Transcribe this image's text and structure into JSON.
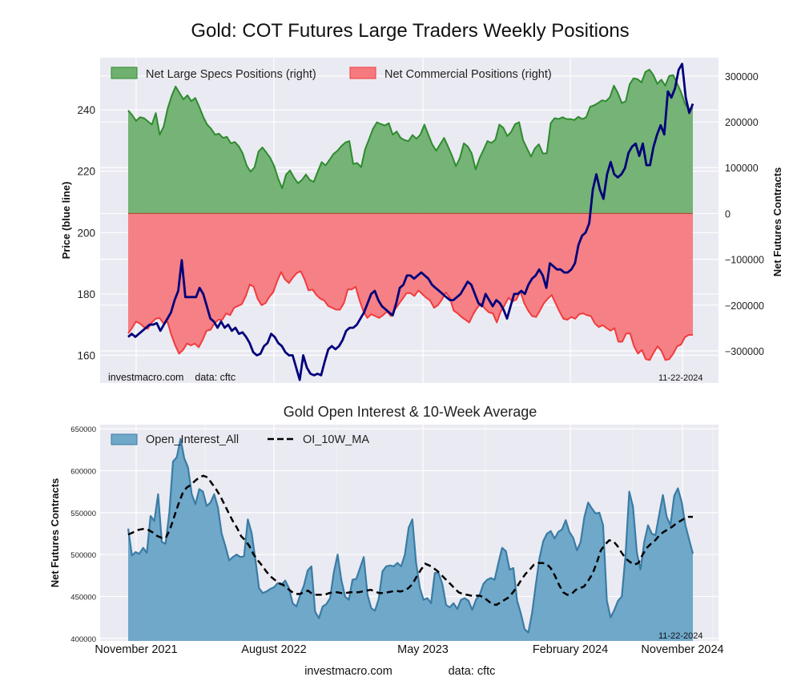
{
  "chart_data": [
    {
      "type": "area",
      "title": "Gold: COT Futures Large Traders Weekly Positions",
      "ylabel_left": "Price (blue line)",
      "ylabel_right": "Net Futures Contracts",
      "left_ylim": [
        151,
        257
      ],
      "left_ticks": [
        160,
        180,
        200,
        220,
        240
      ],
      "right_ylim": [
        -370000,
        340000
      ],
      "right_ticks": [
        -300000,
        -200000,
        -100000,
        0,
        100000,
        200000,
        300000
      ],
      "right_tick_labels": [
        "−300000",
        "−200000",
        "−100000",
        "0",
        "100000",
        "200000",
        "300000"
      ],
      "grid": true,
      "legend": "top-left",
      "legend_entries": [
        "Net Large Specs Positions (right)",
        "Net Commercial Positions (right)"
      ],
      "watermark": "investmacro.com    data: cftc",
      "date_label": "11-22-2024",
      "x_start": "2021-10-26",
      "x_end": "2024-11-19",
      "series": [
        {
          "name": "Net Large Specs Positions (right)",
          "axis": "right",
          "color": "#2e8b2e",
          "fill": "#6fb06f",
          "values": [
            225,
            215,
            202,
            210,
            208,
            201,
            194,
            219,
            172,
            190,
            229,
            256,
            277,
            263,
            249,
            258,
            245,
            252,
            233,
            211,
            194,
            185,
            172,
            174,
            165,
            167,
            153,
            156,
            147,
            131,
            105,
            91,
            101,
            135,
            144,
            133,
            121,
            103,
            76,
            55,
            85,
            94,
            78,
            66,
            73,
            85,
            73,
            69,
            91,
            112,
            105,
            117,
            130,
            137,
            147,
            155,
            158,
            108,
            110,
            101,
            140,
            162,
            185,
            199,
            195,
            192,
            197,
            172,
            179,
            165,
            160,
            158,
            171,
            163,
            172,
            194,
            172,
            151,
            137,
            151,
            165,
            146,
            126,
            103,
            121,
            153,
            146,
            131,
            96,
            121,
            139,
            158,
            154,
            161,
            194,
            187,
            169,
            178,
            195,
            199,
            160,
            142,
            124,
            142,
            151,
            131,
            131,
            197,
            208,
            206,
            210,
            206,
            206,
            204,
            211,
            206,
            210,
            233,
            236,
            241,
            247,
            245,
            254,
            279,
            263,
            241,
            245,
            282,
            295,
            293,
            286,
            309,
            314,
            302,
            283,
            292,
            279,
            300,
            302,
            284,
            265,
            240,
            226,
            231
          ]
        },
        {
          "name": "Net Commercial Positions (right)",
          "axis": "right",
          "color": "#f03c3c",
          "fill": "#f57a7f",
          "values": [
            -262,
            -250,
            -236,
            -240,
            -248,
            -252,
            -238,
            -230,
            -228,
            -240,
            -236,
            -265,
            -288,
            -306,
            -298,
            -284,
            -288,
            -284,
            -292,
            -276,
            -256,
            -254,
            -240,
            -232,
            -232,
            -218,
            -222,
            -206,
            -202,
            -198,
            -180,
            -155,
            -160,
            -186,
            -200,
            -196,
            -182,
            -172,
            -148,
            -128,
            -144,
            -152,
            -140,
            -130,
            -126,
            -144,
            -168,
            -166,
            -178,
            -186,
            -190,
            -202,
            -206,
            -210,
            -210,
            -196,
            -166,
            -166,
            -160,
            -190,
            -214,
            -228,
            -220,
            -224,
            -228,
            -222,
            -214,
            -224,
            -210,
            -198,
            -186,
            -174,
            -174,
            -180,
            -168,
            -176,
            -184,
            -190,
            -206,
            -200,
            -188,
            -172,
            -184,
            -212,
            -218,
            -226,
            -232,
            -238,
            -220,
            -206,
            -196,
            -208,
            -216,
            -218,
            -238,
            -214,
            -200,
            -184,
            -192,
            -188,
            -170,
            -196,
            -212,
            -224,
            -226,
            -212,
            -196,
            -186,
            -178,
            -196,
            -214,
            -230,
            -232,
            -226,
            -230,
            -220,
            -218,
            -222,
            -224,
            -240,
            -248,
            -244,
            -250,
            -256,
            -250,
            -280,
            -280,
            -262,
            -262,
            -290,
            -306,
            -298,
            -318,
            -320,
            -304,
            -290,
            -300,
            -320,
            -318,
            -306,
            -290,
            -286,
            -270,
            -265,
            -265
          ]
        },
        {
          "name": "Price (blue line)",
          "axis": "left",
          "color": "#00007a",
          "values": [
            166,
            167,
            166,
            167,
            168,
            169,
            170,
            170,
            170.5,
            168,
            170,
            172,
            174,
            178,
            181,
            191,
            179,
            179,
            179,
            179,
            182,
            180,
            176,
            172,
            171,
            169,
            171,
            169,
            170,
            168,
            169,
            167,
            167.5,
            166,
            164,
            161,
            160,
            160.5,
            163,
            164,
            167,
            166,
            164,
            163,
            161,
            160,
            160,
            156,
            152,
            160,
            156,
            154,
            153.5,
            154,
            153.5,
            158,
            162,
            163,
            162,
            163,
            165,
            168,
            169,
            169,
            170,
            172,
            174,
            177,
            180,
            181,
            178,
            176,
            175,
            174,
            173,
            177,
            182,
            183,
            186,
            186,
            185,
            186,
            187,
            186,
            185,
            183,
            182,
            181,
            180,
            179,
            178,
            178,
            179,
            180,
            182,
            184,
            183,
            180,
            177,
            176,
            180,
            178,
            176,
            178,
            177,
            175,
            172,
            176,
            180,
            180,
            181,
            180,
            183,
            185,
            186,
            188,
            186,
            182,
            190,
            189,
            188,
            188,
            187,
            187,
            188,
            190,
            196,
            199,
            200,
            203,
            214,
            219,
            214,
            211,
            219,
            223,
            219,
            218,
            219,
            221,
            226,
            228,
            229,
            225,
            229,
            222,
            222,
            228,
            232,
            235,
            232,
            246,
            244,
            247,
            253,
            255,
            244,
            239,
            242
          ]
        }
      ]
    },
    {
      "type": "area",
      "title": "Gold Open Interest & 10-Week Average",
      "ylabel": "Net Futures Contracts",
      "ylim": [
        397000,
        655000
      ],
      "yticks": [
        400000,
        450000,
        500000,
        550000,
        600000,
        650000
      ],
      "xticks": [
        "November 2021",
        "August 2022",
        "May 2023",
        "February 2024",
        "November 2024"
      ],
      "grid": true,
      "legend": "top-left",
      "legend_entries": [
        "Open_Interest_All",
        "OI_10W_MA"
      ],
      "date_label": "11-22-2024",
      "footer": [
        "investmacro.com",
        "data: cftc"
      ],
      "series": [
        {
          "name": "Open_Interest_All",
          "color": "#3a7ca5",
          "fill": "#6fa8c9",
          "values": [
            531,
            499,
            503,
            501,
            508,
            502,
            546,
            540,
            572,
            515,
            513,
            550,
            611,
            616,
            638,
            615,
            604,
            572,
            560,
            578,
            575,
            558,
            562,
            572,
            556,
            525,
            510,
            493,
            497,
            500,
            497,
            498,
            542,
            526,
            495,
            460,
            454,
            456,
            459,
            461,
            466,
            464,
            469,
            460,
            442,
            438,
            452,
            463,
            481,
            486,
            432,
            424,
            438,
            441,
            448,
            479,
            500,
            470,
            450,
            446,
            470,
            471,
            484,
            497,
            452,
            436,
            433,
            447,
            480,
            486,
            487,
            486,
            490,
            486,
            500,
            532,
            542,
            490,
            460,
            446,
            448,
            442,
            478,
            478,
            465,
            440,
            437,
            442,
            435,
            446,
            448,
            445,
            434,
            446,
            452,
            465,
            470,
            472,
            470,
            490,
            508,
            504,
            482,
            484,
            445,
            430,
            411,
            407,
            430,
            464,
            496,
            516,
            525,
            528,
            519,
            527,
            530,
            541,
            527,
            520,
            505,
            515,
            545,
            562,
            555,
            549,
            550,
            535,
            445,
            425,
            434,
            445,
            450,
            500,
            575,
            557,
            503,
            482,
            515,
            535,
            525,
            523,
            548,
            571,
            545,
            535,
            570,
            579,
            563,
            535,
            518,
            501
          ]
        },
        {
          "name": "OI_10W_MA",
          "color": "#000000",
          "dashed": true,
          "values": [
            524,
            526,
            529,
            530,
            531,
            529,
            526,
            522,
            520,
            520,
            530,
            545,
            560,
            573,
            580,
            583,
            588,
            592,
            594,
            592,
            585,
            578,
            570,
            560,
            550,
            540,
            532,
            522,
            517,
            510,
            500,
            493,
            487,
            480,
            474,
            470,
            466,
            464,
            460,
            456,
            453,
            453,
            455,
            457,
            453,
            452,
            452,
            452,
            454,
            455,
            455,
            454,
            454,
            455,
            455,
            455,
            456,
            457,
            458,
            456,
            454,
            454,
            455,
            456,
            457,
            456,
            457,
            460,
            465,
            474,
            482,
            489,
            487,
            484,
            480,
            475,
            470,
            465,
            460,
            455,
            453,
            452,
            451,
            451,
            451,
            449,
            445,
            441,
            440,
            443,
            446,
            449,
            455,
            462,
            470,
            477,
            482,
            488,
            490,
            490,
            489,
            484,
            475,
            464,
            455,
            452,
            453,
            458,
            460,
            462,
            469,
            477,
            490,
            505,
            512,
            517,
            516,
            510,
            502,
            495,
            491,
            488,
            490,
            500,
            508,
            513,
            517,
            523,
            527,
            530,
            533,
            537,
            540,
            543,
            545,
            545
          ]
        }
      ]
    }
  ]
}
